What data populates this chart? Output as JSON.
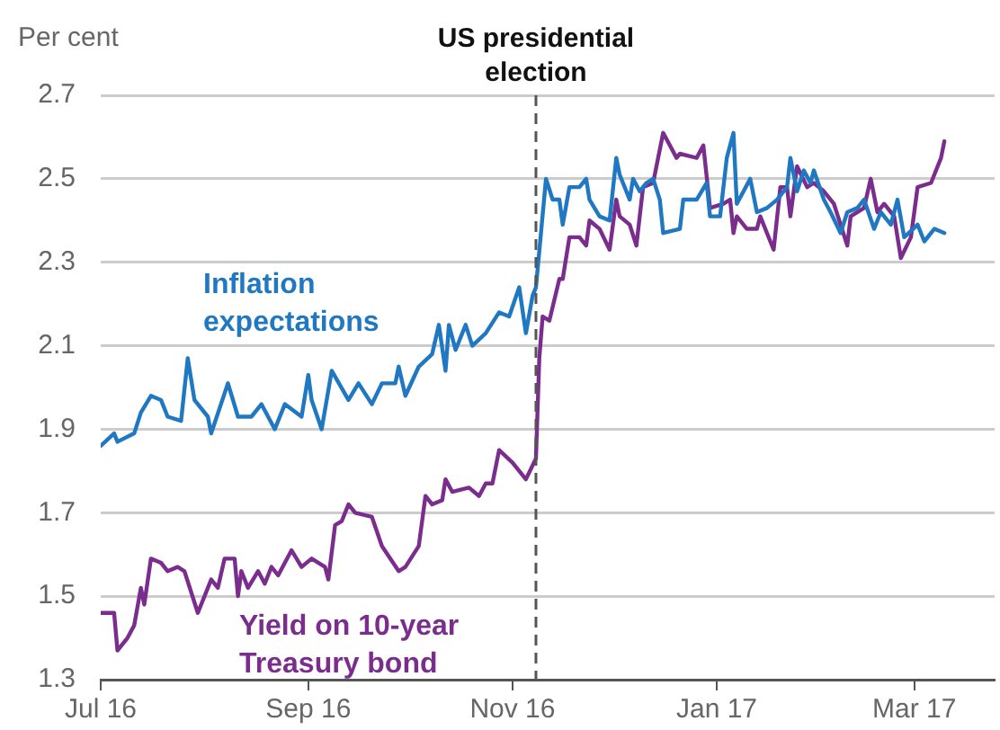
{
  "chart_data": {
    "type": "line",
    "ylabel": "Per cent",
    "xlim": [
      "2016-07-01",
      "2017-03-25"
    ],
    "xticks": [
      {
        "value": "2016-07-01",
        "label": "Jul 16"
      },
      {
        "value": "2016-09-01",
        "label": "Sep 16"
      },
      {
        "value": "2016-11-01",
        "label": "Nov 16"
      },
      {
        "value": "2017-01-01",
        "label": "Jan 17"
      },
      {
        "value": "2017-03-01",
        "label": "Mar 17"
      }
    ],
    "ylim": [
      1.3,
      2.7
    ],
    "yticks": [
      1.3,
      1.5,
      1.7,
      1.9,
      2.1,
      2.3,
      2.5,
      2.7
    ],
    "grid": "y",
    "legend": false,
    "marker": "none",
    "line_style": "solid",
    "ref_lines": [
      {
        "axis": "x",
        "value": "2016-11-08",
        "label": "US presidential election",
        "color": "#555555",
        "line_style": "dashed"
      }
    ],
    "series": [
      {
        "name": "Inflation expectations",
        "color": "#1f78c1",
        "x": [
          "2016-07-01",
          "2016-07-05",
          "2016-07-06",
          "2016-07-11",
          "2016-07-13",
          "2016-07-16",
          "2016-07-19",
          "2016-07-21",
          "2016-07-25",
          "2016-07-27",
          "2016-07-29",
          "2016-08-02",
          "2016-08-03",
          "2016-08-08",
          "2016-08-11",
          "2016-08-15",
          "2016-08-18",
          "2016-08-22",
          "2016-08-25",
          "2016-08-30",
          "2016-09-01",
          "2016-09-02",
          "2016-09-05",
          "2016-09-08",
          "2016-09-13",
          "2016-09-16",
          "2016-09-20",
          "2016-09-23",
          "2016-09-27",
          "2016-09-28",
          "2016-09-30",
          "2016-10-04",
          "2016-10-08",
          "2016-10-10",
          "2016-10-12",
          "2016-10-13",
          "2016-10-15",
          "2016-10-18",
          "2016-10-20",
          "2016-10-24",
          "2016-10-28",
          "2016-10-31",
          "2016-11-03",
          "2016-11-05",
          "2016-11-07",
          "2016-11-08",
          "2016-11-11",
          "2016-11-13",
          "2016-11-15",
          "2016-11-16",
          "2016-11-18",
          "2016-11-21",
          "2016-11-23",
          "2016-11-24",
          "2016-11-27",
          "2016-11-30",
          "2016-12-02",
          "2016-12-03",
          "2016-12-06",
          "2016-12-07",
          "2016-12-09",
          "2016-12-11",
          "2016-12-13",
          "2016-12-15",
          "2016-12-16",
          "2016-12-21",
          "2016-12-22",
          "2016-12-26",
          "2016-12-29",
          "2016-12-30",
          "2017-01-02",
          "2017-01-04",
          "2017-01-06",
          "2017-01-07",
          "2017-01-11",
          "2017-01-13",
          "2017-01-16",
          "2017-01-19",
          "2017-01-22",
          "2017-01-23",
          "2017-01-25",
          "2017-01-27",
          "2017-01-29",
          "2017-01-30",
          "2017-02-02",
          "2017-02-04",
          "2017-02-07",
          "2017-02-09",
          "2017-02-12",
          "2017-02-14",
          "2017-02-17",
          "2017-02-19",
          "2017-02-22",
          "2017-02-24",
          "2017-02-26",
          "2017-03-02",
          "2017-03-04",
          "2017-03-07",
          "2017-03-10"
        ],
        "values": [
          1.86,
          1.89,
          1.87,
          1.89,
          1.94,
          1.98,
          1.97,
          1.93,
          1.92,
          2.07,
          1.97,
          1.93,
          1.89,
          2.01,
          1.93,
          1.93,
          1.96,
          1.9,
          1.96,
          1.93,
          2.03,
          1.97,
          1.9,
          2.04,
          1.97,
          2.01,
          1.96,
          2.01,
          2.01,
          2.05,
          1.98,
          2.05,
          2.08,
          2.15,
          2.04,
          2.15,
          2.09,
          2.15,
          2.1,
          2.13,
          2.18,
          2.17,
          2.24,
          2.13,
          2.22,
          2.24,
          2.5,
          2.45,
          2.45,
          2.39,
          2.48,
          2.48,
          2.5,
          2.45,
          2.41,
          2.4,
          2.55,
          2.51,
          2.45,
          2.5,
          2.47,
          2.49,
          2.5,
          2.45,
          2.37,
          2.38,
          2.45,
          2.45,
          2.49,
          2.41,
          2.41,
          2.55,
          2.61,
          2.44,
          2.5,
          2.42,
          2.43,
          2.45,
          2.48,
          2.55,
          2.47,
          2.52,
          2.49,
          2.52,
          2.45,
          2.42,
          2.37,
          2.42,
          2.43,
          2.45,
          2.38,
          2.42,
          2.39,
          2.45,
          2.36,
          2.39,
          2.35,
          2.38,
          2.37
        ]
      },
      {
        "name": "Yield on 10-year Treasury bond",
        "color": "#7b2d8e",
        "x": [
          "2016-07-01",
          "2016-07-05",
          "2016-07-06",
          "2016-07-09",
          "2016-07-11",
          "2016-07-13",
          "2016-07-14",
          "2016-07-16",
          "2016-07-19",
          "2016-07-21",
          "2016-07-24",
          "2016-07-26",
          "2016-07-30",
          "2016-08-03",
          "2016-08-05",
          "2016-08-07",
          "2016-08-10",
          "2016-08-11",
          "2016-08-12",
          "2016-08-14",
          "2016-08-17",
          "2016-08-19",
          "2016-08-21",
          "2016-08-23",
          "2016-08-27",
          "2016-08-30",
          "2016-09-02",
          "2016-09-06",
          "2016-09-07",
          "2016-09-09",
          "2016-09-11",
          "2016-09-13",
          "2016-09-15",
          "2016-09-20",
          "2016-09-23",
          "2016-09-28",
          "2016-09-30",
          "2016-10-04",
          "2016-10-06",
          "2016-10-08",
          "2016-10-11",
          "2016-10-12",
          "2016-10-14",
          "2016-10-19",
          "2016-10-22",
          "2016-10-24",
          "2016-10-26",
          "2016-10-28",
          "2016-11-01",
          "2016-11-05",
          "2016-11-08",
          "2016-11-09",
          "2016-11-10",
          "2016-11-12",
          "2016-11-15",
          "2016-11-16",
          "2016-11-18",
          "2016-11-21",
          "2016-11-23",
          "2016-11-24",
          "2016-11-27",
          "2016-11-30",
          "2016-12-02",
          "2016-12-03",
          "2016-12-06",
          "2016-12-08",
          "2016-12-10",
          "2016-12-13",
          "2016-12-16",
          "2016-12-20",
          "2016-12-21",
          "2016-12-26",
          "2016-12-28",
          "2016-12-30",
          "2017-01-03",
          "2017-01-05",
          "2017-01-06",
          "2017-01-07",
          "2017-01-10",
          "2017-01-13",
          "2017-01-14",
          "2017-01-18",
          "2017-01-20",
          "2017-01-22",
          "2017-01-23",
          "2017-01-25",
          "2017-01-28",
          "2017-01-30",
          "2017-02-02",
          "2017-02-05",
          "2017-02-09",
          "2017-02-10",
          "2017-02-14",
          "2017-02-16",
          "2017-02-18",
          "2017-02-20",
          "2017-02-23",
          "2017-02-25",
          "2017-02-28",
          "2017-03-02",
          "2017-03-06",
          "2017-03-09",
          "2017-03-10"
        ],
        "values": [
          1.46,
          1.46,
          1.37,
          1.4,
          1.43,
          1.52,
          1.48,
          1.59,
          1.58,
          1.56,
          1.57,
          1.56,
          1.46,
          1.54,
          1.52,
          1.59,
          1.59,
          1.5,
          1.56,
          1.52,
          1.56,
          1.53,
          1.57,
          1.55,
          1.61,
          1.57,
          1.59,
          1.57,
          1.54,
          1.67,
          1.68,
          1.72,
          1.7,
          1.69,
          1.62,
          1.56,
          1.57,
          1.62,
          1.74,
          1.72,
          1.73,
          1.78,
          1.75,
          1.76,
          1.74,
          1.77,
          1.77,
          1.85,
          1.82,
          1.78,
          1.83,
          2.07,
          2.17,
          2.16,
          2.26,
          2.26,
          2.36,
          2.36,
          2.34,
          2.4,
          2.38,
          2.33,
          2.45,
          2.41,
          2.39,
          2.34,
          2.48,
          2.49,
          2.61,
          2.55,
          2.56,
          2.55,
          2.58,
          2.43,
          2.44,
          2.45,
          2.37,
          2.41,
          2.38,
          2.38,
          2.41,
          2.33,
          2.48,
          2.48,
          2.41,
          2.53,
          2.48,
          2.49,
          2.47,
          2.44,
          2.34,
          2.41,
          2.43,
          2.5,
          2.42,
          2.44,
          2.41,
          2.31,
          2.36,
          2.48,
          2.49,
          2.55,
          2.59
        ]
      }
    ]
  }
}
